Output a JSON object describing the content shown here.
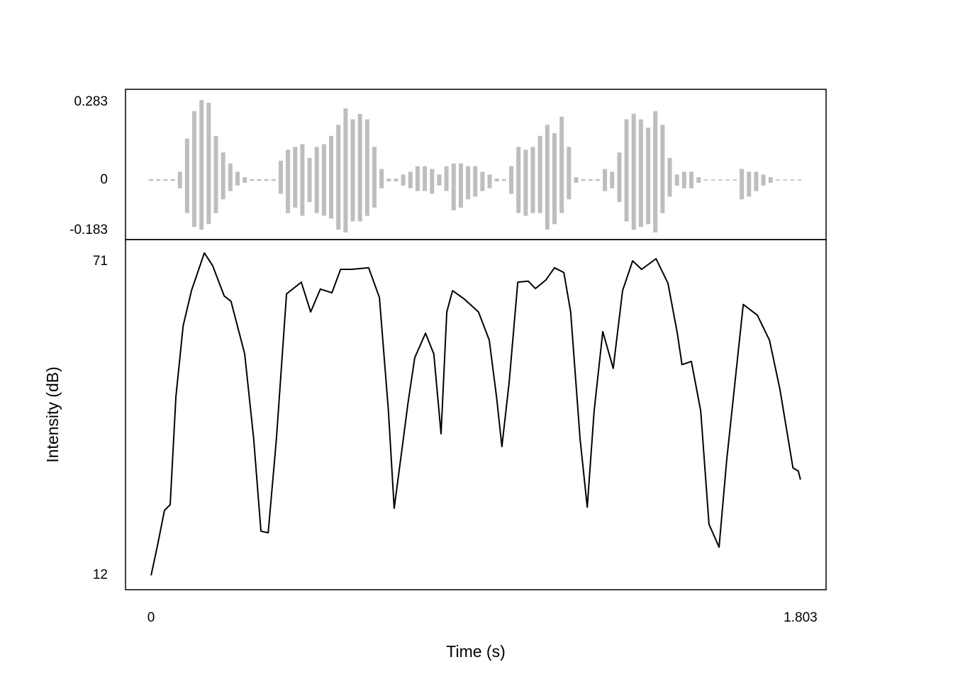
{
  "chart_data": [
    {
      "type": "waveform",
      "color": "#bebebe",
      "xlim": [
        -0.071,
        1.874
      ],
      "ylim": [
        -0.216,
        0.329
      ],
      "yticks": [
        0.283,
        0,
        -0.183
      ],
      "x": [
        0,
        0.02,
        0.04,
        0.06,
        0.08,
        0.1,
        0.12,
        0.14,
        0.16,
        0.18,
        0.2,
        0.22,
        0.24,
        0.26,
        0.28,
        0.3,
        0.32,
        0.34,
        0.36,
        0.38,
        0.4,
        0.42,
        0.44,
        0.46,
        0.48,
        0.5,
        0.52,
        0.54,
        0.56,
        0.58,
        0.6,
        0.62,
        0.64,
        0.66,
        0.68,
        0.7,
        0.72,
        0.74,
        0.76,
        0.78,
        0.8,
        0.82,
        0.84,
        0.86,
        0.88,
        0.9,
        0.92,
        0.94,
        0.96,
        0.98,
        1.0,
        1.02,
        1.04,
        1.06,
        1.08,
        1.1,
        1.12,
        1.14,
        1.16,
        1.18,
        1.2,
        1.22,
        1.24,
        1.26,
        1.28,
        1.3,
        1.32,
        1.34,
        1.36,
        1.38,
        1.4,
        1.42,
        1.44,
        1.46,
        1.48,
        1.5,
        1.52,
        1.54,
        1.56,
        1.58,
        1.6,
        1.62,
        1.64,
        1.66,
        1.68,
        1.7,
        1.72,
        1.74,
        1.76,
        1.78,
        1.8
      ],
      "values_max": [
        0.003,
        0.003,
        0.003,
        0.003,
        0.03,
        0.15,
        0.25,
        0.29,
        0.28,
        0.16,
        0.1,
        0.06,
        0.03,
        0.01,
        0.003,
        0.003,
        0.003,
        0.003,
        0.07,
        0.11,
        0.12,
        0.13,
        0.08,
        0.12,
        0.13,
        0.16,
        0.2,
        0.26,
        0.22,
        0.24,
        0.22,
        0.12,
        0.04,
        0.005,
        0.005,
        0.02,
        0.03,
        0.05,
        0.05,
        0.04,
        0.02,
        0.05,
        0.06,
        0.06,
        0.05,
        0.05,
        0.03,
        0.02,
        0.005,
        0.003,
        0.05,
        0.12,
        0.11,
        0.12,
        0.16,
        0.2,
        0.17,
        0.23,
        0.12,
        0.01,
        0.003,
        0.003,
        0.003,
        0.04,
        0.03,
        0.1,
        0.22,
        0.24,
        0.22,
        0.19,
        0.25,
        0.2,
        0.08,
        0.02,
        0.03,
        0.03,
        0.01,
        0.002,
        0.002,
        0.002,
        0.002,
        0.002,
        0.04,
        0.03,
        0.03,
        0.02,
        0.01,
        0.002,
        0.002,
        0.002,
        0.002
      ],
      "values_min": [
        -0.003,
        -0.003,
        -0.003,
        -0.003,
        -0.03,
        -0.12,
        -0.17,
        -0.18,
        -0.16,
        -0.12,
        -0.07,
        -0.04,
        -0.02,
        -0.01,
        -0.003,
        -0.003,
        -0.003,
        -0.003,
        -0.05,
        -0.12,
        -0.1,
        -0.13,
        -0.08,
        -0.12,
        -0.13,
        -0.14,
        -0.18,
        -0.19,
        -0.15,
        -0.15,
        -0.13,
        -0.1,
        -0.03,
        -0.005,
        -0.005,
        -0.02,
        -0.03,
        -0.04,
        -0.04,
        -0.05,
        -0.02,
        -0.04,
        -0.11,
        -0.1,
        -0.07,
        -0.06,
        -0.04,
        -0.03,
        -0.005,
        -0.003,
        -0.05,
        -0.12,
        -0.13,
        -0.12,
        -0.12,
        -0.18,
        -0.16,
        -0.12,
        -0.07,
        -0.01,
        -0.003,
        -0.003,
        -0.003,
        -0.04,
        -0.03,
        -0.08,
        -0.15,
        -0.18,
        -0.17,
        -0.16,
        -0.19,
        -0.12,
        -0.06,
        -0.02,
        -0.03,
        -0.03,
        -0.01,
        -0.002,
        -0.002,
        -0.002,
        -0.002,
        -0.002,
        -0.07,
        -0.06,
        -0.04,
        -0.02,
        -0.01,
        -0.002,
        -0.002,
        -0.002,
        -0.002
      ]
    },
    {
      "type": "line",
      "color": "#000000",
      "x_label": "Time (s)",
      "y_label": "Intensity (dB)",
      "xlim": [
        -0.071,
        1.874
      ],
      "ylim": [
        9.3,
        75.1
      ],
      "xticks": [
        0,
        1.803
      ],
      "yticks": [
        71,
        12
      ],
      "x": [
        0,
        0.0177,
        0.037,
        0.053,
        0.069,
        0.089,
        0.112,
        0.148,
        0.171,
        0.203,
        0.222,
        0.26,
        0.285,
        0.305,
        0.325,
        0.348,
        0.376,
        0.417,
        0.443,
        0.47,
        0.502,
        0.526,
        0.557,
        0.604,
        0.634,
        0.659,
        0.675,
        0.695,
        0.713,
        0.732,
        0.762,
        0.785,
        0.805,
        0.821,
        0.837,
        0.87,
        0.909,
        0.939,
        0.959,
        0.974,
        0.994,
        1.018,
        1.047,
        1.067,
        1.096,
        1.12,
        1.146,
        1.165,
        1.191,
        1.211,
        1.23,
        1.254,
        1.283,
        1.309,
        1.337,
        1.362,
        1.402,
        1.435,
        1.461,
        1.474,
        1.5,
        1.526,
        1.549,
        1.577,
        1.598,
        1.644,
        1.683,
        1.717,
        1.746,
        1.782,
        1.797,
        1.803
      ],
      "values": [
        12,
        17.6,
        24.2,
        25.3,
        45.6,
        58.9,
        65.5,
        72.6,
        70.2,
        64.5,
        63.5,
        53.6,
        37.6,
        20.3,
        20,
        37.6,
        64.9,
        67.1,
        61.5,
        65.8,
        65.1,
        69.5,
        69.5,
        69.8,
        64.2,
        42.9,
        24.6,
        34.9,
        44.2,
        52.9,
        57.5,
        53.6,
        38.6,
        61.5,
        65.5,
        63.9,
        61.5,
        56.2,
        45.6,
        36.2,
        48.2,
        67.1,
        67.3,
        65.9,
        67.5,
        69.8,
        68.9,
        61.5,
        37.6,
        24.8,
        42.9,
        57.8,
        50.9,
        65.5,
        71.1,
        69.5,
        71.5,
        66.9,
        57.5,
        51.6,
        52.2,
        42.9,
        21.6,
        17.3,
        33.6,
        62.9,
        60.9,
        56.2,
        46.9,
        32.2,
        31.6,
        30
      ]
    }
  ]
}
